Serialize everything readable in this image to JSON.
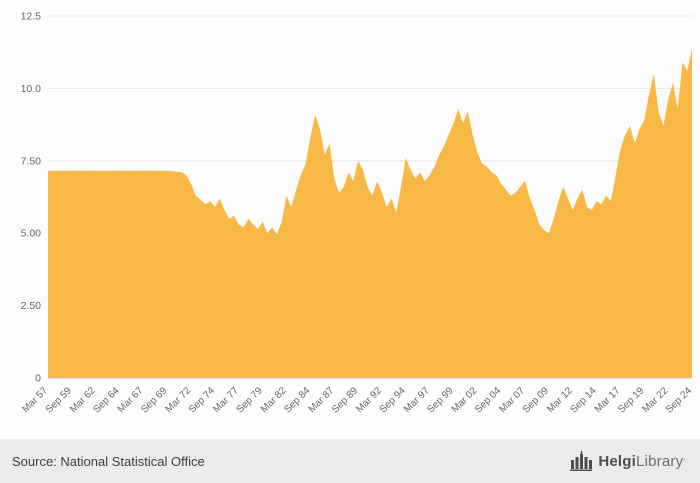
{
  "chart_data": {
    "type": "area",
    "title": "",
    "frequency": "semi-annual (Mar/Sep) from Mar 1957 to Sep 2024",
    "series": [
      {
        "name": "value",
        "values": [
          7.15,
          7.15,
          7.15,
          7.16,
          7.15,
          7.15,
          7.16,
          7.15,
          7.15,
          7.16,
          7.16,
          7.15,
          7.15,
          7.15,
          7.16,
          7.15,
          7.15,
          7.16,
          7.15,
          7.15,
          7.15,
          7.16,
          7.16,
          7.15,
          7.15,
          7.15,
          7.14,
          7.12,
          7.1,
          7.0,
          6.7,
          6.3,
          6.15,
          6.0,
          6.1,
          5.9,
          6.2,
          5.8,
          5.5,
          5.6,
          5.3,
          5.2,
          5.5,
          5.3,
          5.15,
          5.4,
          5.0,
          5.2,
          4.95,
          5.4,
          6.3,
          5.9,
          6.5,
          7.0,
          7.4,
          8.3,
          9.1,
          8.6,
          7.7,
          8.1,
          6.9,
          6.4,
          6.6,
          7.1,
          6.8,
          7.5,
          7.2,
          6.6,
          6.3,
          6.8,
          6.4,
          5.9,
          6.2,
          5.7,
          6.6,
          7.6,
          7.2,
          6.9,
          7.1,
          6.8,
          7.0,
          7.3,
          7.7,
          8.0,
          8.4,
          8.8,
          9.3,
          8.8,
          9.2,
          8.4,
          7.8,
          7.4,
          7.3,
          7.1,
          7.0,
          6.7,
          6.5,
          6.3,
          6.4,
          6.6,
          6.8,
          6.2,
          5.8,
          5.3,
          5.1,
          5.0,
          5.5,
          6.1,
          6.6,
          6.2,
          5.8,
          6.2,
          6.5,
          5.9,
          5.8,
          6.1,
          6.0,
          6.3,
          6.1,
          7.0,
          7.9,
          8.4,
          8.7,
          8.1,
          8.6,
          8.9,
          9.8,
          10.5,
          9.2,
          8.7,
          9.6,
          10.2,
          9.3,
          10.9,
          10.6,
          11.35
        ]
      }
    ],
    "x_tick_labels": [
      "Mar 57",
      "Sep 59",
      "Mar 62",
      "Sep 64",
      "Mar 67",
      "Sep 69",
      "Mar 72",
      "Sep 74",
      "Mar 77",
      "Sep 79",
      "Mar 82",
      "Sep 84",
      "Mar 87",
      "Sep 89",
      "Mar 92",
      "Sep 94",
      "Mar 97",
      "Sep 99",
      "Mar 02",
      "Sep 04",
      "Mar 07",
      "Sep 09",
      "Mar 12",
      "Sep 14",
      "Mar 17",
      "Sep 19",
      "Mar 22",
      "Sep 24"
    ],
    "points_per_tick": 5,
    "ylim": [
      0,
      12.5
    ],
    "y_ticks": [
      {
        "value": 0,
        "label": "0"
      },
      {
        "value": 2.5,
        "label": "2.50"
      },
      {
        "value": 5,
        "label": "5.00"
      },
      {
        "value": 7.5,
        "label": "7.50"
      },
      {
        "value": 10,
        "label": "10.0"
      },
      {
        "value": 12.5,
        "label": "12.5"
      }
    ],
    "grid": true,
    "legend": "none",
    "colors": {
      "area_fill": "#f8b845",
      "grid_line": "#e6e6e6",
      "axis_line": "#c9c9c9",
      "tick_text": "#666666",
      "background": "#fcfcfc"
    }
  },
  "footer": {
    "source_text": "Source: National Statistical Office",
    "logo": {
      "part1": "Helgi",
      "part2": "Library",
      "suffix": "."
    }
  }
}
